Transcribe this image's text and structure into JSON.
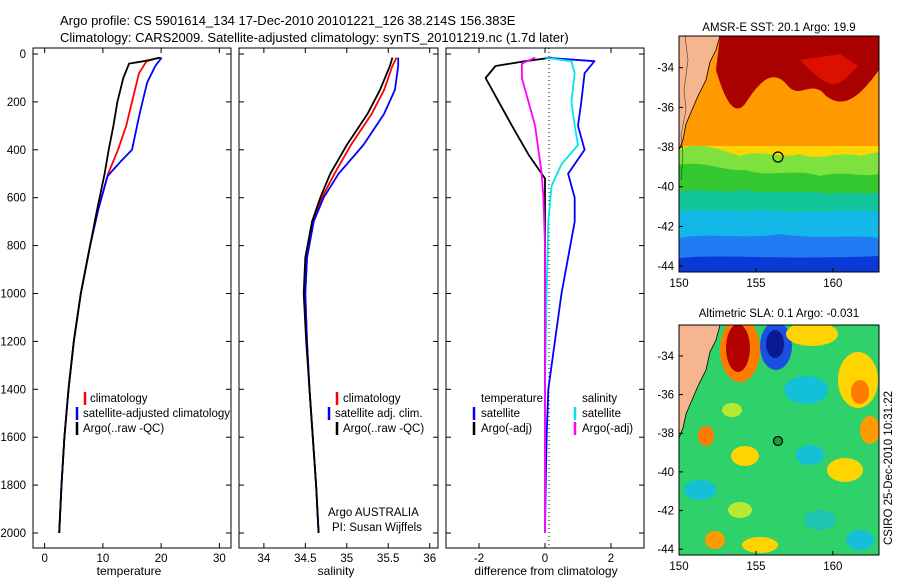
{
  "header": {
    "line1": "Argo profile: CS 5901614_134 17-Dec-2010 20101221_126 38.214S 156.383E",
    "line2": "Climatology: CARS2009. Satellite-adjusted climatology: synTS_20101219.nc (1.7d later)"
  },
  "credit": "CSIRO 25-Dec-2010 10:31:22",
  "colors": {
    "climatology": "#ff0000",
    "satellite": "#0000ff",
    "argo": "#000000",
    "salinity_satellite": "#00e5e5",
    "salinity_argo": "#ff00ff",
    "land": "#f5b58f"
  },
  "chart_data": [
    {
      "type": "line",
      "id": "temperature",
      "xlabel": "temperature",
      "ylabel": "",
      "xlim": [
        -2,
        32
      ],
      "ylim": [
        2060,
        0
      ],
      "xticks": [
        "0",
        "10",
        "20",
        "30"
      ],
      "yticks": [
        "0",
        "200",
        "400",
        "600",
        "800",
        "1000",
        "1200",
        "1400",
        "1600",
        "1800",
        "2000"
      ],
      "legend": [
        "climatology",
        "satellite-adjusted climatology",
        "Argo(..raw -QC)"
      ],
      "series": [
        {
          "name": "climatology",
          "color": "#ff0000",
          "points": [
            [
              19.6,
              15
            ],
            [
              17.5,
              30
            ],
            [
              16.2,
              80
            ],
            [
              15.0,
              200
            ],
            [
              14.0,
              300
            ],
            [
              12.6,
              400
            ],
            [
              10.9,
              500
            ],
            [
              9.2,
              650
            ],
            [
              7.8,
              800
            ],
            [
              6.2,
              1000
            ],
            [
              5.0,
              1200
            ],
            [
              4.1,
              1400
            ],
            [
              3.4,
              1600
            ],
            [
              2.9,
              1800
            ],
            [
              2.5,
              2000
            ]
          ]
        },
        {
          "name": "satellite-adjusted climatology",
          "color": "#0000ff",
          "points": [
            [
              20.1,
              15
            ],
            [
              19.0,
              50
            ],
            [
              17.6,
              120
            ],
            [
              16.3,
              250
            ],
            [
              15.0,
              400
            ],
            [
              13.0,
              450
            ],
            [
              10.8,
              510
            ],
            [
              9.2,
              650
            ],
            [
              7.8,
              800
            ],
            [
              6.2,
              1000
            ],
            [
              5.0,
              1200
            ],
            [
              4.1,
              1400
            ],
            [
              3.4,
              1600
            ],
            [
              2.9,
              1800
            ],
            [
              2.5,
              2000
            ]
          ]
        },
        {
          "name": "Argo(..raw -QC)",
          "color": "#000000",
          "points": [
            [
              19.9,
              15
            ],
            [
              17.0,
              30
            ],
            [
              14.5,
              40
            ],
            [
              13.5,
              100
            ],
            [
              12.5,
              200
            ],
            [
              11.8,
              300
            ],
            [
              11.0,
              400
            ],
            [
              10.3,
              500
            ],
            [
              9.0,
              650
            ],
            [
              7.8,
              800
            ],
            [
              6.2,
              1000
            ],
            [
              5.0,
              1200
            ],
            [
              4.1,
              1400
            ],
            [
              3.4,
              1600
            ],
            [
              2.9,
              1800
            ],
            [
              2.5,
              2000
            ]
          ]
        }
      ]
    },
    {
      "type": "line",
      "id": "salinity",
      "xlabel": "salinity",
      "ylabel": "",
      "xlim": [
        33.7,
        36.1
      ],
      "ylim": [
        2060,
        0
      ],
      "xticks": [
        "34",
        "34.5",
        "35",
        "35.5",
        "36"
      ],
      "legend": [
        "climatology",
        "satellite adj. clim.",
        "Argo(..raw -QC)"
      ],
      "annotation": [
        "Argo AUSTRALIA",
        "PI: Susan Wijffels"
      ],
      "series": [
        {
          "name": "climatology",
          "color": "#ff0000",
          "points": [
            [
              35.6,
              15
            ],
            [
              35.55,
              50
            ],
            [
              35.45,
              150
            ],
            [
              35.3,
              250
            ],
            [
              35.05,
              380
            ],
            [
              34.85,
              500
            ],
            [
              34.7,
              600
            ],
            [
              34.6,
              700
            ],
            [
              34.52,
              850
            ],
            [
              34.5,
              1000
            ],
            [
              34.52,
              1200
            ],
            [
              34.55,
              1400
            ],
            [
              34.59,
              1600
            ],
            [
              34.63,
              1800
            ],
            [
              34.66,
              2000
            ]
          ]
        },
        {
          "name": "satellite adj. clim.",
          "color": "#0000ff",
          "points": [
            [
              35.62,
              15
            ],
            [
              35.62,
              50
            ],
            [
              35.58,
              150
            ],
            [
              35.45,
              250
            ],
            [
              35.2,
              380
            ],
            [
              34.9,
              500
            ],
            [
              34.72,
              600
            ],
            [
              34.6,
              700
            ],
            [
              34.52,
              850
            ],
            [
              34.5,
              1000
            ],
            [
              34.52,
              1200
            ],
            [
              34.55,
              1400
            ],
            [
              34.59,
              1600
            ],
            [
              34.63,
              1800
            ],
            [
              34.66,
              2000
            ]
          ]
        },
        {
          "name": "Argo(..raw -QC)",
          "color": "#000000",
          "points": [
            [
              35.55,
              15
            ],
            [
              35.52,
              50
            ],
            [
              35.4,
              150
            ],
            [
              35.25,
              250
            ],
            [
              35.0,
              380
            ],
            [
              34.8,
              500
            ],
            [
              34.68,
              600
            ],
            [
              34.58,
              700
            ],
            [
              34.5,
              850
            ],
            [
              34.48,
              1000
            ],
            [
              34.51,
              1200
            ],
            [
              34.55,
              1400
            ],
            [
              34.59,
              1600
            ],
            [
              34.63,
              1800
            ],
            [
              34.66,
              2000
            ]
          ]
        }
      ]
    },
    {
      "type": "line",
      "id": "difference",
      "xlabel": "difference from climatology",
      "ylabel": "",
      "xlim": [
        -3,
        3
      ],
      "ylim": [
        2060,
        0
      ],
      "xticks": [
        "-2",
        "0",
        "2"
      ],
      "legend_groups": [
        {
          "heading": "temperature",
          "items": [
            "satellite",
            "Argo(-adj)"
          ]
        },
        {
          "heading": "salinity",
          "items": [
            "satellite",
            "Argo(-adj)"
          ]
        }
      ],
      "series": [
        {
          "name": "temperature satellite",
          "color": "#0000ff",
          "points": [
            [
              0.0,
              15
            ],
            [
              1.5,
              30
            ],
            [
              1.2,
              80
            ],
            [
              1.1,
              200
            ],
            [
              1.0,
              300
            ],
            [
              1.2,
              400
            ],
            [
              0.7,
              500
            ],
            [
              0.9,
              600
            ],
            [
              0.9,
              700
            ],
            [
              0.7,
              850
            ],
            [
              0.5,
              1000
            ],
            [
              0.3,
              1200
            ],
            [
              0.1,
              1400
            ],
            [
              0.05,
              1600
            ],
            [
              0.02,
              1800
            ],
            [
              0.0,
              2000
            ]
          ]
        },
        {
          "name": "temperature Argo(-adj)",
          "color": "#000000",
          "points": [
            [
              0.2,
              15
            ],
            [
              -0.6,
              30
            ],
            [
              -1.5,
              50
            ],
            [
              -1.8,
              100
            ],
            [
              -1.4,
              200
            ],
            [
              -1.0,
              300
            ],
            [
              -0.5,
              420
            ],
            [
              0.0,
              520
            ],
            [
              0.0,
              800
            ],
            [
              0.0,
              2000
            ]
          ]
        },
        {
          "name": "salinity satellite",
          "color": "#00e5e5",
          "points": [
            [
              0.0,
              15
            ],
            [
              0.8,
              30
            ],
            [
              0.9,
              80
            ],
            [
              0.8,
              200
            ],
            [
              0.9,
              300
            ],
            [
              1.0,
              380
            ],
            [
              0.5,
              460
            ],
            [
              0.2,
              550
            ],
            [
              0.1,
              700
            ],
            [
              0.05,
              1000
            ],
            [
              0.0,
              1400
            ],
            [
              0.0,
              2000
            ]
          ]
        },
        {
          "name": "salinity Argo(-adj)",
          "color": "#ff00ff",
          "points": [
            [
              -0.3,
              15
            ],
            [
              -0.7,
              40
            ],
            [
              -0.7,
              100
            ],
            [
              -0.5,
              200
            ],
            [
              -0.3,
              300
            ],
            [
              -0.2,
              400
            ],
            [
              -0.1,
              500
            ],
            [
              -0.05,
              600
            ],
            [
              0.0,
              800
            ],
            [
              0.0,
              2000
            ]
          ]
        }
      ]
    },
    {
      "type": "heatmap",
      "id": "sst-map",
      "title": "AMSR-E SST: 20.1 Argo: 19.9",
      "xticks": [
        "150",
        "155",
        "160"
      ],
      "yticks": [
        "-34",
        "-36",
        "-38",
        "-40",
        "-42",
        "-44"
      ],
      "xlim": [
        150,
        163
      ],
      "ylim": [
        -44.3,
        -32.4
      ],
      "argo_location": [
        156.383,
        -38.214
      ]
    },
    {
      "type": "heatmap",
      "id": "sla-map",
      "title": "Altimetric SLA: 0.1 Argo: -0.031",
      "xticks": [
        "150",
        "155",
        "160"
      ],
      "yticks": [
        "-34",
        "-36",
        "-38",
        "-40",
        "-42",
        "-44"
      ],
      "xlim": [
        150,
        163
      ],
      "ylim": [
        -44.3,
        -32.4
      ],
      "argo_location": [
        156.383,
        -38.214
      ]
    }
  ]
}
